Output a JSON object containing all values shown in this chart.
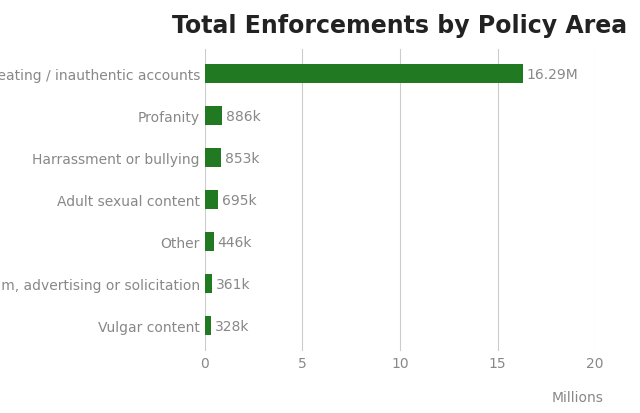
{
  "title": "Total Enforcements by Policy Area",
  "categories": [
    "Vulgar content",
    "Spam, advertising or solicitation",
    "Other",
    "Adult sexual content",
    "Harrassment or bullying",
    "Profanity",
    "Cheating / inauthentic accounts"
  ],
  "values": [
    0.328,
    0.361,
    0.446,
    0.695,
    0.853,
    0.886,
    16.29
  ],
  "labels": [
    "328k",
    "361k",
    "446k",
    "695k",
    "853k",
    "886k",
    "16.29M"
  ],
  "bar_color": "#217a21",
  "background_color": "#ffffff",
  "title_fontsize": 17,
  "label_fontsize": 10,
  "tick_fontsize": 10,
  "xlabel": "Millions",
  "xlim": [
    0,
    20
  ],
  "xticks": [
    0,
    5,
    10,
    15,
    20
  ],
  "grid_color": "#cccccc",
  "text_color": "#888888",
  "title_color": "#222222",
  "bar_height": 0.45
}
